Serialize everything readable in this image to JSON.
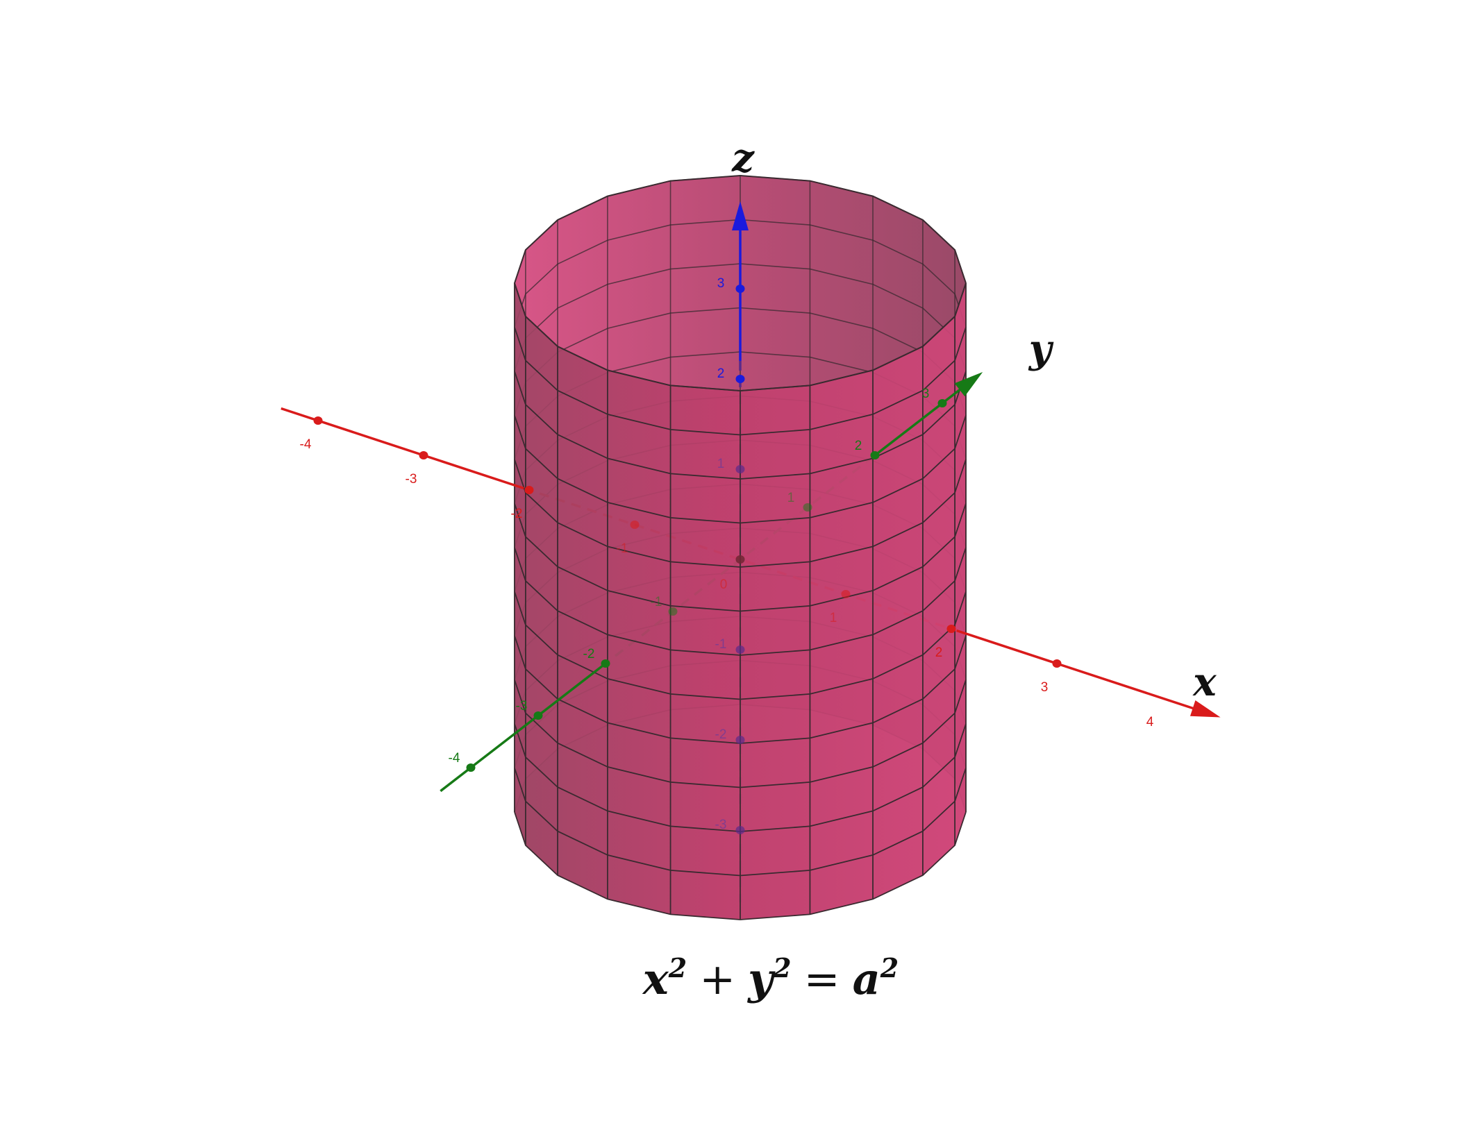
{
  "axes": {
    "x": {
      "name": "x",
      "color": "#d91b1b",
      "tick_labels": [
        "-4",
        "-3",
        "-2",
        "-1",
        "0",
        "1",
        "2",
        "3",
        "4"
      ]
    },
    "y": {
      "name": "y",
      "color": "#167a16",
      "tick_labels": [
        "-4",
        "-3",
        "-2",
        "-1",
        "0",
        "1",
        "2",
        "3"
      ]
    },
    "z": {
      "name": "z",
      "color": "#1a1add",
      "tick_labels": [
        "-3",
        "-2",
        "-1",
        "1",
        "2",
        "3"
      ]
    }
  },
  "surface": {
    "color": "#c2406e",
    "edge_color": "#3a2a30"
  },
  "equation": {
    "x": "x",
    "y": "y",
    "a": "a",
    "exp": "2",
    "plus": "+",
    "equals": "="
  }
}
